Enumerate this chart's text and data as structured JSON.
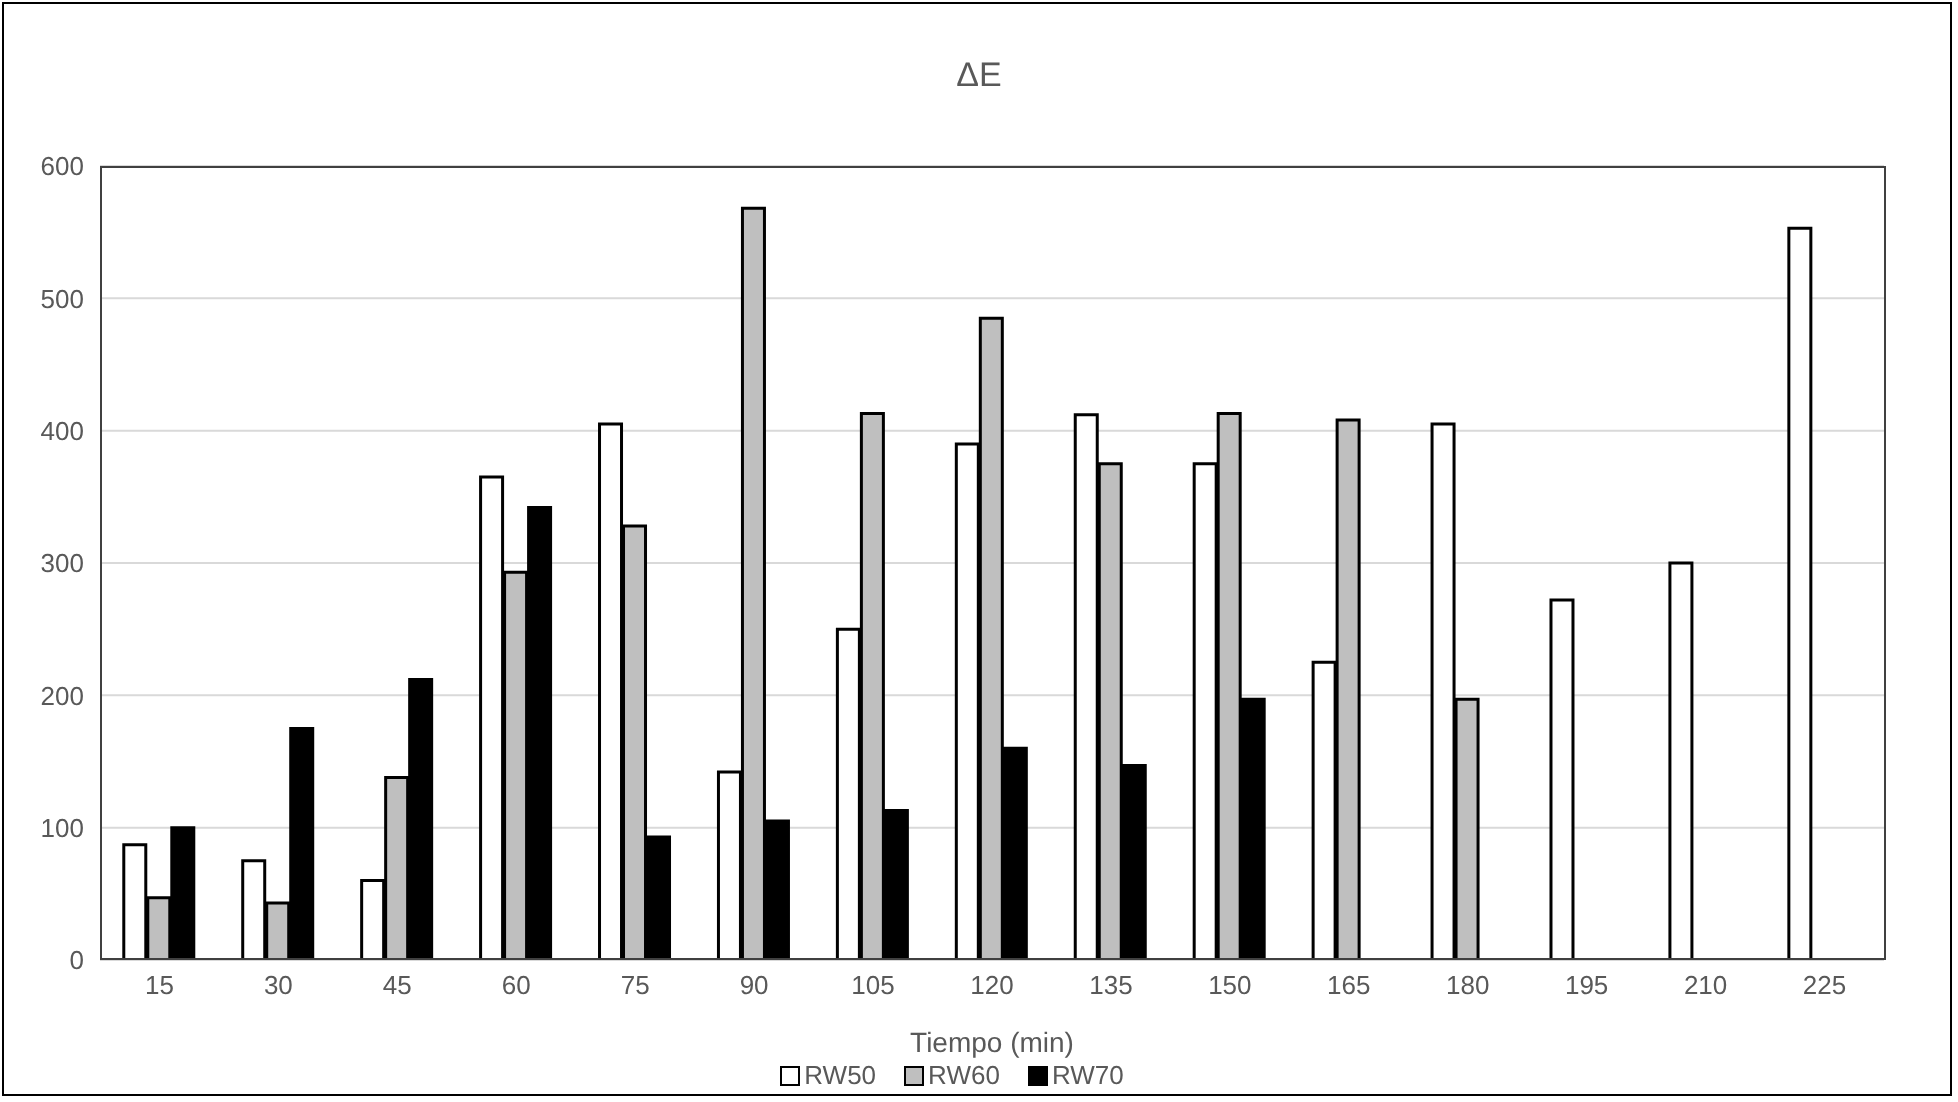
{
  "chart_data": {
    "type": "bar",
    "title": "ΔE",
    "xlabel": "Tiempo (min)",
    "categories": [
      "15",
      "30",
      "45",
      "60",
      "75",
      "90",
      "105",
      "120",
      "135",
      "150",
      "165",
      "180",
      "195",
      "210",
      "225"
    ],
    "series": [
      {
        "name": "RW50",
        "color": "#ffffff",
        "values": [
          87,
          75,
          60,
          365,
          405,
          142,
          250,
          390,
          412,
          375,
          225,
          405,
          272,
          300,
          553
        ]
      },
      {
        "name": "RW60",
        "color": "#bfbfbf",
        "values": [
          47,
          43,
          138,
          293,
          328,
          568,
          413,
          485,
          375,
          413,
          408,
          197,
          null,
          null,
          null
        ]
      },
      {
        "name": "RW70",
        "color": "#000000",
        "values": [
          100,
          175,
          212,
          342,
          93,
          105,
          113,
          160,
          147,
          197,
          null,
          null,
          null,
          null,
          null
        ]
      }
    ],
    "ylim": [
      0,
      600
    ],
    "yticks": [
      0,
      100,
      200,
      300,
      400,
      500,
      600
    ],
    "grid": "y",
    "legend": "bottom"
  }
}
